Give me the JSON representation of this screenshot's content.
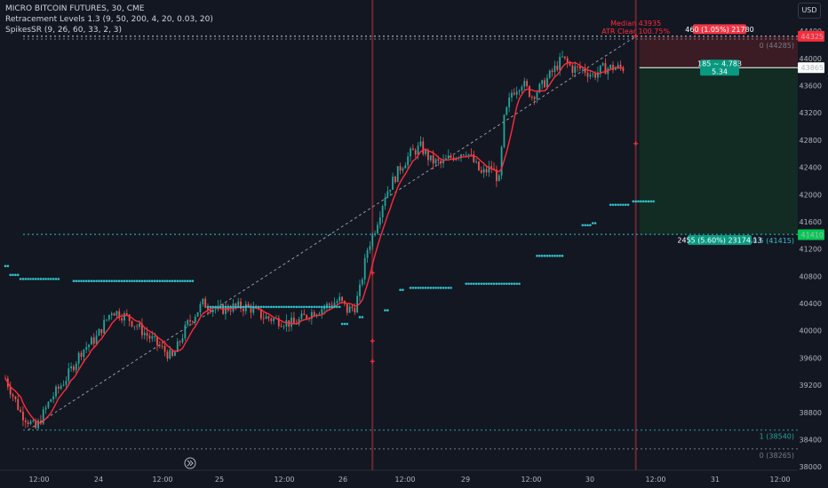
{
  "legend": {
    "title": "MICRO BITCOIN FUTURES, 30, CME",
    "indicator1": "Retracement Levels 1.3 (9, 50, 200, 4, 20, 0.03, 20)",
    "indicator2": "SpikesSR (9, 26, 60, 33, 2, 3)"
  },
  "currency": "USD",
  "colors": {
    "background": "#131722",
    "up": "#26a69a",
    "down": "#ef5350",
    "ma": "#ff2b3a",
    "sr": "#2fc1c9"
  },
  "chart_data": {
    "type": "candlestick",
    "y_ticks": [
      38000,
      38400,
      38800,
      39200,
      39600,
      40000,
      40400,
      40800,
      41200,
      41600,
      42000,
      42400,
      42800,
      43200,
      43600,
      44000,
      44400
    ],
    "ylim": [
      37950,
      44650
    ],
    "x_ticks": [
      "12:00",
      "24",
      "12:00",
      "25",
      "12:00",
      "26",
      "12:00",
      "29",
      "12:00",
      "30",
      "12:00",
      "31",
      "12:00"
    ],
    "bar_count": 245,
    "price_path": [
      [
        0,
        39300
      ],
      [
        6,
        38800
      ],
      [
        12,
        38560
      ],
      [
        18,
        39000
      ],
      [
        24,
        39300
      ],
      [
        30,
        39700
      ],
      [
        36,
        39900
      ],
      [
        42,
        40300
      ],
      [
        48,
        40200
      ],
      [
        54,
        40000
      ],
      [
        60,
        39800
      ],
      [
        66,
        39600
      ],
      [
        72,
        40100
      ],
      [
        78,
        40400
      ],
      [
        84,
        40300
      ],
      [
        90,
        40350
      ],
      [
        96,
        40350
      ],
      [
        102,
        40200
      ],
      [
        108,
        40150
      ],
      [
        114,
        40100
      ],
      [
        120,
        40250
      ],
      [
        126,
        40350
      ],
      [
        132,
        40450
      ],
      [
        135,
        40300
      ],
      [
        138,
        40350
      ],
      [
        140,
        40600
      ],
      [
        143,
        41200
      ],
      [
        146,
        41500
      ],
      [
        150,
        42000
      ],
      [
        153,
        42200
      ],
      [
        156,
        42400
      ],
      [
        160,
        42600
      ],
      [
        164,
        42700
      ],
      [
        168,
        42500
      ],
      [
        172,
        42450
      ],
      [
        176,
        42550
      ],
      [
        182,
        42650
      ],
      [
        188,
        42300
      ],
      [
        192,
        42400
      ],
      [
        195,
        42200
      ],
      [
        197,
        43100
      ],
      [
        200,
        43500
      ],
      [
        204,
        43650
      ],
      [
        208,
        43450
      ],
      [
        212,
        43600
      ],
      [
        216,
        43800
      ],
      [
        220,
        44000
      ],
      [
        224,
        43850
      ],
      [
        228,
        43850
      ],
      [
        232,
        43750
      ],
      [
        236,
        43850
      ],
      [
        240,
        43865
      ],
      [
        244,
        43860
      ]
    ],
    "y_labels": [
      {
        "price": 44325,
        "text": "44325",
        "color": "#ff2b3a"
      },
      {
        "price": 43865,
        "text": "43865",
        "color": "#ffffff"
      },
      {
        "price": 41410,
        "text": "41410",
        "color": "#00c853"
      }
    ],
    "retracement_levels": [
      {
        "price": 44285,
        "label": "0 (44285)",
        "color": "#787b86"
      },
      {
        "price": 41415,
        "label": "0.5 (41415)",
        "color": "#2fc1c9"
      },
      {
        "price": 38540,
        "label": "1 (38540)",
        "color": "#26a69a"
      },
      {
        "price": 38265,
        "label": "0 (38265)",
        "color": "#787b86"
      }
    ],
    "position_tool": {
      "entry": 43865,
      "stop": 44325,
      "target": 41410,
      "risk_label": "460 (1.05%) 21780",
      "center_label": [
        "185 ~ 4.783",
        "5.34"
      ],
      "reward_label": "2455 (5.60%) 23174.13"
    },
    "annotations": [
      "Median 43935",
      "ATR Clear 100.75%"
    ],
    "sr_levels": [
      {
        "from": 0,
        "to": 1,
        "price": 40950
      },
      {
        "from": 2,
        "to": 5,
        "price": 40820
      },
      {
        "from": 6,
        "to": 21,
        "price": 40760
      },
      {
        "from": 27,
        "to": 45,
        "price": 40730
      },
      {
        "from": 46,
        "to": 58,
        "price": 40730
      },
      {
        "from": 59,
        "to": 74,
        "price": 40730
      },
      {
        "from": 80,
        "to": 97,
        "price": 40350
      },
      {
        "from": 98,
        "to": 132,
        "price": 40350
      },
      {
        "from": 133,
        "to": 135,
        "price": 40100
      },
      {
        "from": 140,
        "to": 141,
        "price": 40200
      },
      {
        "from": 150,
        "to": 151,
        "price": 40300
      },
      {
        "from": 156,
        "to": 157,
        "price": 40600
      },
      {
        "from": 160,
        "to": 176,
        "price": 40630
      },
      {
        "from": 182,
        "to": 200,
        "price": 40690
      },
      {
        "from": 201,
        "to": 203,
        "price": 40690
      },
      {
        "from": 210,
        "to": 220,
        "price": 41100
      },
      {
        "from": 228,
        "to": 231,
        "price": 41550
      },
      {
        "from": 232,
        "to": 233,
        "price": 41580
      },
      {
        "from": 239,
        "to": 246,
        "price": 41850
      },
      {
        "from": 248,
        "to": 256,
        "price": 41900
      }
    ],
    "spike_bars": [
      145,
      249
    ]
  }
}
